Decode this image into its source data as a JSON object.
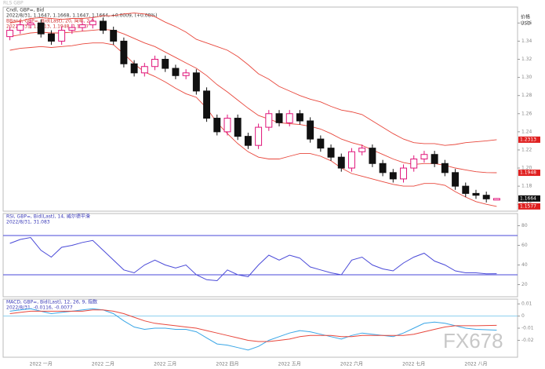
{
  "header": "RLS GBP",
  "watermark": "FX678",
  "price_axis_labels": [
    "价格",
    "USD"
  ],
  "chart_data": [
    {
      "type": "candlestick",
      "legend_lines": [
        "Cndl, GBP=, Bid",
        "2022/8/31, 1.1647, 1.1668, 1.1647, 1.1664, +0.0009, (+0.08%)",
        "BBand, GBP=, Bid(Last), 20, 简单, 2.0",
        "2022/8/31, 1.2313, 1.1948, 1.1577"
      ],
      "categories": [
        null,
        null,
        null,
        "2022 一月",
        null,
        null,
        null,
        null,
        null,
        "2022 二月",
        null,
        null,
        null,
        null,
        null,
        "2022 三月",
        null,
        null,
        null,
        null,
        null,
        "2022 四月",
        null,
        null,
        null,
        null,
        null,
        "2022 五月",
        null,
        null,
        null,
        null,
        null,
        "2022 六月",
        null,
        null,
        null,
        null,
        null,
        "2022 七月",
        null,
        null,
        null,
        null,
        null,
        "2022 八月",
        null,
        null
      ],
      "open": [
        1.345,
        1.352,
        1.358,
        1.36,
        1.348,
        1.34,
        1.352,
        1.355,
        1.358,
        1.362,
        1.352,
        1.34,
        1.315,
        1.305,
        1.312,
        1.32,
        1.31,
        1.302,
        1.305,
        1.285,
        1.255,
        1.24,
        1.255,
        1.235,
        1.225,
        1.245,
        1.26,
        1.25,
        1.26,
        1.252,
        1.232,
        1.222,
        1.212,
        1.2,
        1.218,
        1.222,
        1.205,
        1.195,
        1.188,
        1.2,
        1.21,
        1.215,
        1.205,
        1.195,
        1.18,
        1.172,
        1.17,
        1.1647
      ],
      "high": [
        1.356,
        1.362,
        1.364,
        1.364,
        1.352,
        1.356,
        1.359,
        1.362,
        1.366,
        1.366,
        1.356,
        1.344,
        1.319,
        1.316,
        1.324,
        1.324,
        1.314,
        1.309,
        1.309,
        1.289,
        1.259,
        1.259,
        1.259,
        1.239,
        1.249,
        1.264,
        1.264,
        1.264,
        1.264,
        1.256,
        1.236,
        1.226,
        1.216,
        1.222,
        1.226,
        1.226,
        1.209,
        1.199,
        1.204,
        1.214,
        1.219,
        1.219,
        1.209,
        1.199,
        1.184,
        1.176,
        1.174,
        1.1668
      ],
      "low": [
        1.341,
        1.348,
        1.354,
        1.344,
        1.336,
        1.336,
        1.348,
        1.351,
        1.354,
        1.348,
        1.336,
        1.311,
        1.301,
        1.301,
        1.308,
        1.306,
        1.298,
        1.298,
        1.281,
        1.251,
        1.236,
        1.236,
        1.231,
        1.221,
        1.221,
        1.241,
        1.246,
        1.246,
        1.248,
        1.228,
        1.218,
        1.208,
        1.196,
        1.196,
        1.214,
        1.201,
        1.191,
        1.184,
        1.184,
        1.196,
        1.206,
        1.201,
        1.191,
        1.176,
        1.168,
        1.166,
        1.162,
        1.1647
      ],
      "close": [
        1.352,
        1.358,
        1.36,
        1.348,
        1.34,
        1.352,
        1.355,
        1.358,
        1.362,
        1.352,
        1.34,
        1.315,
        1.305,
        1.312,
        1.32,
        1.31,
        1.302,
        1.305,
        1.285,
        1.255,
        1.24,
        1.255,
        1.235,
        1.225,
        1.245,
        1.26,
        1.25,
        1.26,
        1.252,
        1.232,
        1.222,
        1.212,
        1.2,
        1.218,
        1.222,
        1.205,
        1.195,
        1.188,
        1.2,
        1.21,
        1.215,
        1.205,
        1.195,
        1.18,
        1.172,
        1.17,
        1.166,
        1.1664
      ],
      "up_color": "#e0147a",
      "down_color": "#111111",
      "bands": {
        "color": "#e8473c",
        "upper": [
          1.36,
          1.362,
          1.365,
          1.366,
          1.365,
          1.364,
          1.365,
          1.365,
          1.366,
          1.368,
          1.368,
          1.37,
          1.371,
          1.37,
          1.367,
          1.361,
          1.356,
          1.35,
          1.342,
          1.338,
          1.334,
          1.33,
          1.323,
          1.314,
          1.304,
          1.298,
          1.29,
          1.285,
          1.28,
          1.276,
          1.273,
          1.268,
          1.264,
          1.262,
          1.259,
          1.252,
          1.245,
          1.238,
          1.232,
          1.228,
          1.227,
          1.227,
          1.225,
          1.226,
          1.228,
          1.229,
          1.23,
          1.2313
        ],
        "middle": [
          1.345,
          1.347,
          1.349,
          1.35,
          1.349,
          1.349,
          1.35,
          1.351,
          1.352,
          1.353,
          1.352,
          1.348,
          1.343,
          1.338,
          1.334,
          1.328,
          1.322,
          1.316,
          1.31,
          1.302,
          1.292,
          1.284,
          1.275,
          1.266,
          1.258,
          1.254,
          1.25,
          1.249,
          1.248,
          1.246,
          1.243,
          1.238,
          1.232,
          1.228,
          1.225,
          1.22,
          1.215,
          1.21,
          1.206,
          1.204,
          1.205,
          1.205,
          1.203,
          1.2,
          1.198,
          1.196,
          1.195,
          1.1948
        ],
        "lower": [
          1.33,
          1.332,
          1.333,
          1.334,
          1.333,
          1.334,
          1.335,
          1.337,
          1.338,
          1.338,
          1.336,
          1.326,
          1.315,
          1.306,
          1.301,
          1.295,
          1.288,
          1.282,
          1.278,
          1.266,
          1.25,
          1.238,
          1.227,
          1.218,
          1.212,
          1.21,
          1.21,
          1.213,
          1.216,
          1.216,
          1.213,
          1.208,
          1.2,
          1.194,
          1.191,
          1.188,
          1.185,
          1.182,
          1.18,
          1.18,
          1.183,
          1.183,
          1.181,
          1.174,
          1.168,
          1.163,
          1.16,
          1.1577
        ]
      },
      "ylim": [
        1.155,
        1.375
      ],
      "yticks": [
        1.16,
        1.18,
        {
          "value": 1.2,
          "label": "1.20"
        },
        1.22,
        1.24,
        1.26,
        1.28,
        {
          "value": 1.3,
          "label": "1.30"
        },
        1.32,
        1.34,
        1.36
      ]
    },
    {
      "type": "line",
      "legend_lines": [
        "RSI, GBP=, Bid(Last), 14, 威尔德平滑",
        "2022/8/31, 31.083"
      ],
      "series": [
        {
          "color": "#4a4ad8",
          "values": [
            62,
            66,
            68,
            55,
            48,
            58,
            60,
            63,
            65,
            55,
            45,
            35,
            32,
            40,
            45,
            40,
            37,
            40,
            30,
            25,
            24,
            35,
            30,
            28,
            40,
            50,
            45,
            50,
            47,
            38,
            35,
            32,
            30,
            45,
            48,
            40,
            36,
            34,
            42,
            48,
            52,
            44,
            40,
            34,
            32,
            32,
            31,
            31.083
          ]
        }
      ],
      "levels": [
        70,
        30
      ],
      "ylim": [
        10,
        90
      ],
      "yticks": [
        20,
        40,
        60,
        80
      ]
    },
    {
      "type": "line",
      "legend_lines": [
        "MACD, GBP=, Bid(Last), 12, 26, 9, 指数",
        "2022/8/31, -0.0116, -0.0077"
      ],
      "series": [
        {
          "color": "#3aa6e6",
          "values": [
            0.004,
            0.005,
            0.006,
            0.004,
            0.002,
            0.003,
            0.004,
            0.005,
            0.006,
            0.005,
            0.002,
            -0.004,
            -0.009,
            -0.011,
            -0.01,
            -0.01,
            -0.011,
            -0.011,
            -0.013,
            -0.018,
            -0.023,
            -0.024,
            -0.026,
            -0.028,
            -0.025,
            -0.02,
            -0.017,
            -0.014,
            -0.012,
            -0.013,
            -0.015,
            -0.017,
            -0.019,
            -0.016,
            -0.014,
            -0.015,
            -0.016,
            -0.017,
            -0.014,
            -0.01,
            -0.006,
            -0.005,
            -0.006,
            -0.008,
            -0.01,
            -0.011,
            -0.0113,
            -0.0116
          ]
        },
        {
          "color": "#e8473c",
          "values": [
            0.002,
            0.003,
            0.004,
            0.004,
            0.004,
            0.004,
            0.004,
            0.004,
            0.005,
            0.005,
            0.004,
            0.002,
            -0.001,
            -0.004,
            -0.006,
            -0.007,
            -0.008,
            -0.009,
            -0.01,
            -0.012,
            -0.014,
            -0.016,
            -0.018,
            -0.02,
            -0.021,
            -0.021,
            -0.02,
            -0.019,
            -0.017,
            -0.016,
            -0.016,
            -0.016,
            -0.017,
            -0.017,
            -0.016,
            -0.016,
            -0.016,
            -0.016,
            -0.016,
            -0.015,
            -0.013,
            -0.011,
            -0.009,
            -0.008,
            -0.008,
            -0.008,
            -0.0078,
            -0.0077
          ]
        }
      ],
      "levels": [
        0
      ],
      "ylim": [
        -0.032,
        0.012
      ],
      "yticks": [
        -0.02,
        -0.01,
        0,
        0.01
      ]
    }
  ]
}
